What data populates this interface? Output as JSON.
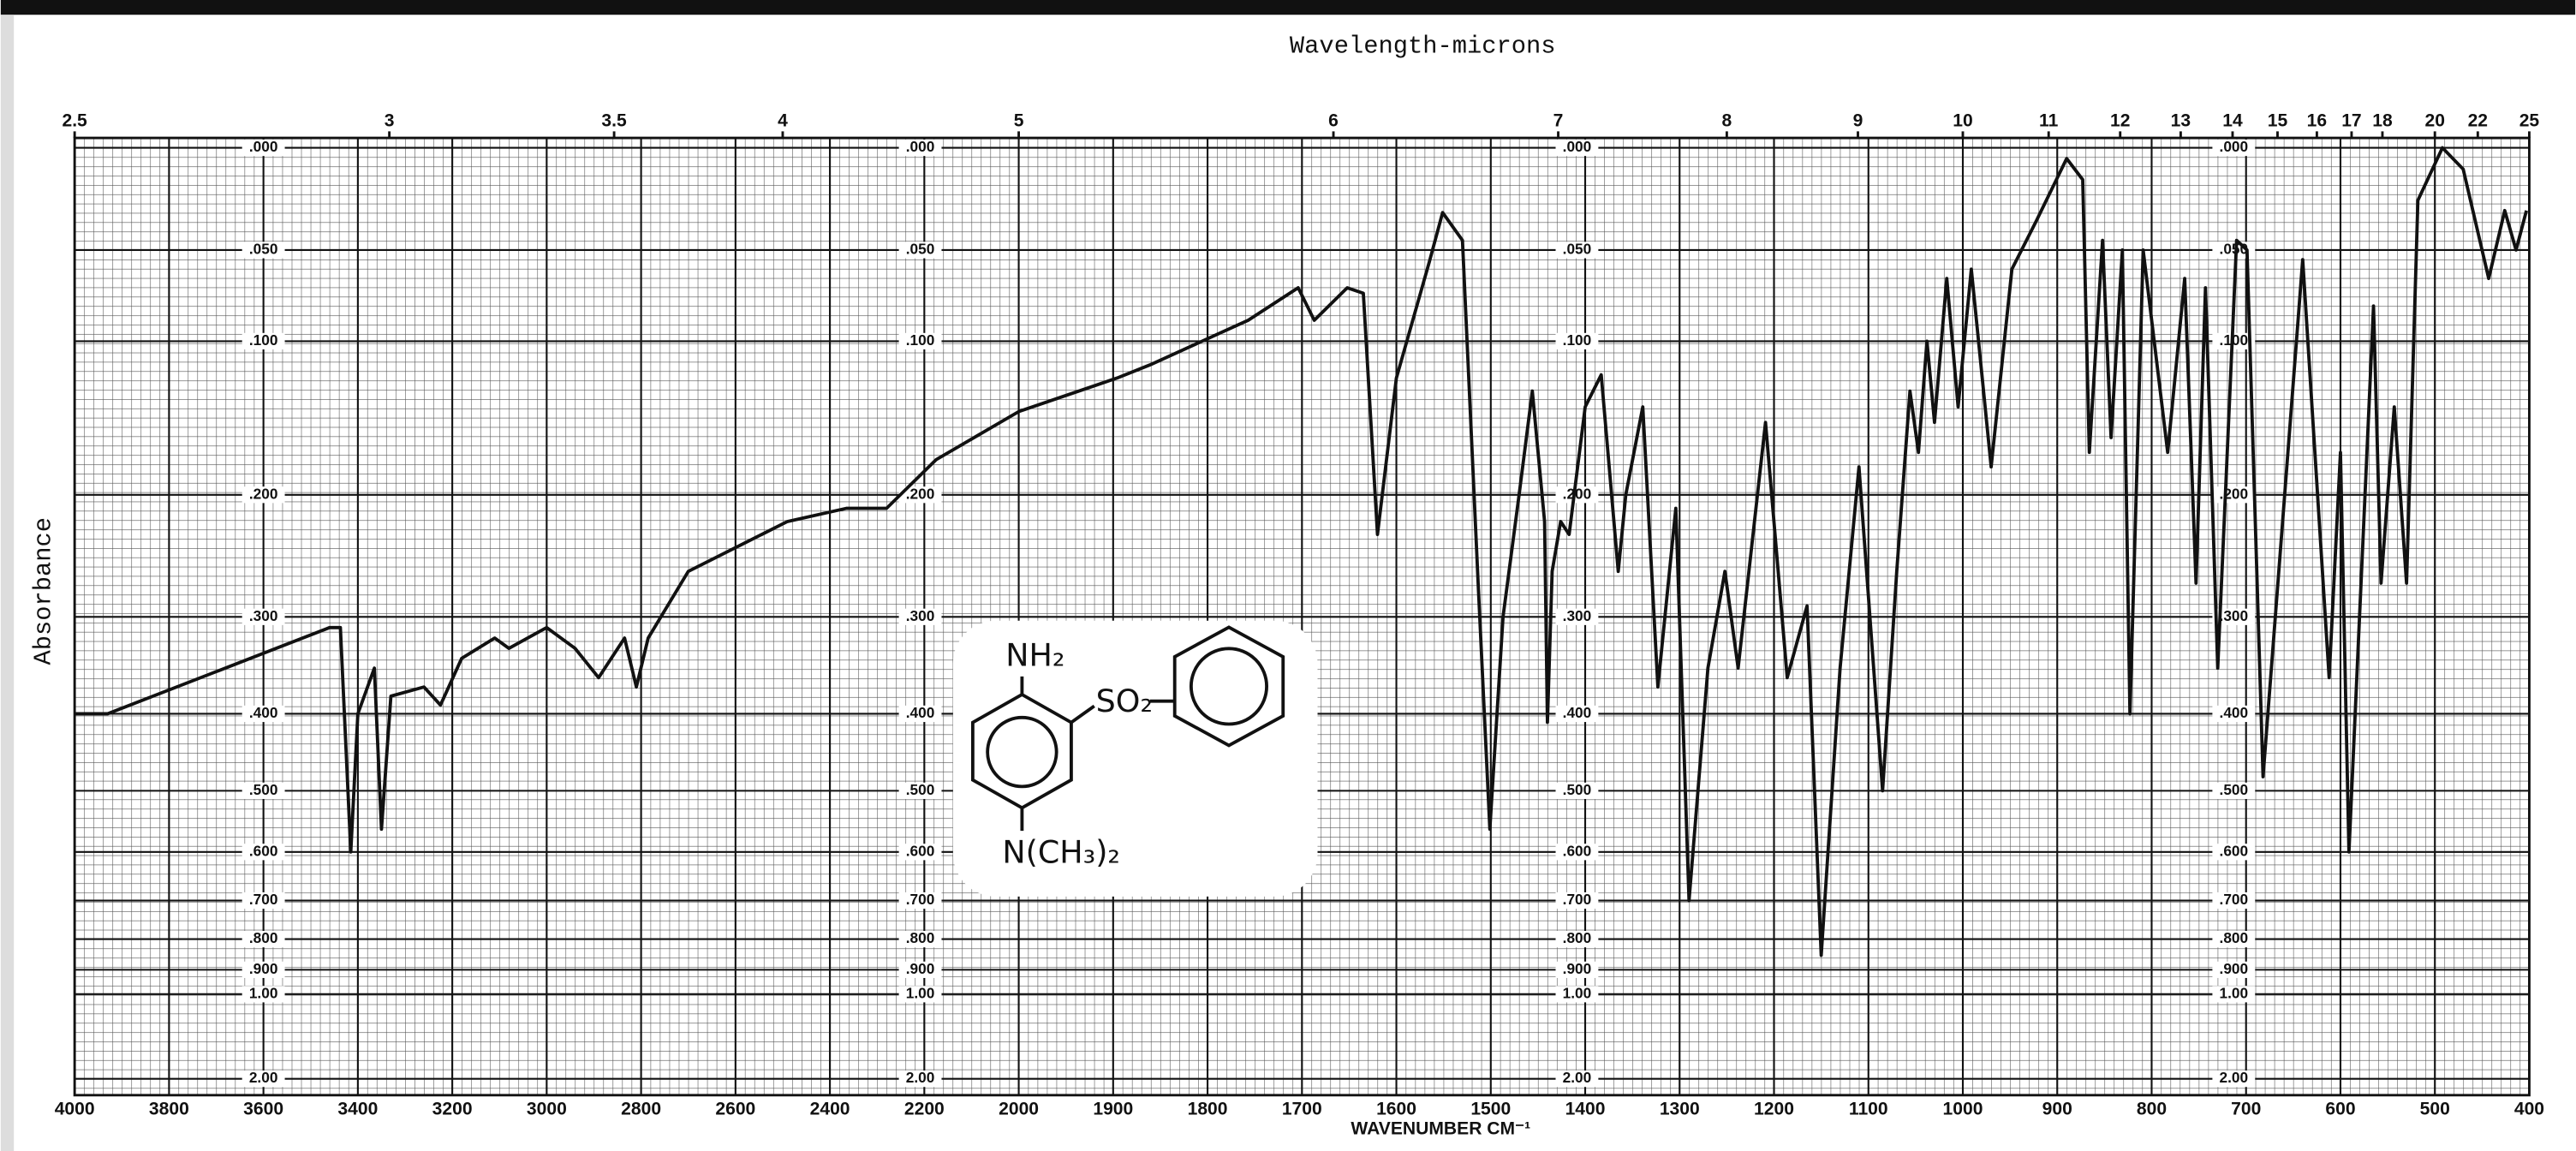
{
  "chart_data": {
    "type": "line",
    "title": "Wavelength-microns",
    "ylabel": "Absorbance",
    "xlabel": "WAVENUMBER CM⁻¹",
    "color": "#111111",
    "grid": true,
    "y_scale": "absorbance",
    "xscale": {
      "break": 2000,
      "expansion": 2
    },
    "xlim": [
      4000,
      400
    ],
    "xticks": [
      4000,
      3800,
      3600,
      3400,
      3200,
      3000,
      2800,
      2600,
      2400,
      2200,
      2000,
      1900,
      1800,
      1700,
      1600,
      1500,
      1400,
      1300,
      1200,
      1100,
      1000,
      900,
      800,
      700,
      600,
      500,
      400
    ],
    "x2ticks": [
      2.5,
      3,
      3.5,
      4,
      5,
      6,
      7,
      8,
      9,
      10,
      11,
      12,
      13,
      14,
      15,
      16,
      17,
      18,
      20,
      22,
      25
    ],
    "ylim": [
      0,
      2
    ],
    "yticks": [
      {
        "value": 0,
        "label": ".000"
      },
      {
        "value": 0.05,
        "label": ".050"
      },
      {
        "value": 0.1,
        "label": ".100"
      },
      {
        "value": 0.2,
        "label": ".200"
      },
      {
        "value": 0.3,
        "label": ".300"
      },
      {
        "value": 0.4,
        "label": ".400"
      },
      {
        "value": 0.5,
        "label": ".500"
      },
      {
        "value": 0.6,
        "label": ".600"
      },
      {
        "value": 0.7,
        "label": ".700"
      },
      {
        "value": 0.8,
        "label": ".800"
      },
      {
        "value": 0.9,
        "label": ".900"
      },
      {
        "value": 1,
        "label": "1.00"
      },
      {
        "value": 2,
        "label": "2.00"
      }
    ],
    "x": [
      4000,
      3930,
      3460,
      3437,
      3415,
      3400,
      3365,
      3350,
      3330,
      3260,
      3225,
      3180,
      3110,
      3080,
      3000,
      2940,
      2890,
      2835,
      2810,
      2785,
      2700,
      2490,
      2365,
      2280,
      2175,
      2000,
      1896,
      1861,
      1757,
      1704,
      1687,
      1652,
      1635,
      1620,
      1600,
      1565,
      1551,
      1530,
      1513,
      1501,
      1487,
      1470,
      1456,
      1443,
      1440,
      1435,
      1426,
      1417,
      1400,
      1383,
      1365,
      1357,
      1339,
      1323,
      1304,
      1290,
      1270,
      1252,
      1238,
      1209,
      1186,
      1165,
      1150,
      1130,
      1110,
      1085,
      1070,
      1056,
      1047,
      1038,
      1030,
      1017,
      1005,
      991,
      970,
      948,
      922,
      890,
      873,
      866,
      852,
      843,
      831,
      823,
      809,
      783,
      765,
      753,
      743,
      730,
      710,
      699,
      682,
      640,
      612,
      600,
      591,
      565,
      557,
      543,
      530,
      518,
      492,
      470,
      443,
      426,
      414,
      403
    ],
    "values": [
      0.4,
      0.4,
      0.31,
      0.31,
      0.6,
      0.4,
      0.35,
      0.56,
      0.38,
      0.37,
      0.39,
      0.34,
      0.32,
      0.33,
      0.31,
      0.33,
      0.36,
      0.32,
      0.37,
      0.32,
      0.26,
      0.22,
      0.21,
      0.21,
      0.175,
      0.143,
      0.122,
      0.114,
      0.088,
      0.07,
      0.088,
      0.07,
      0.073,
      0.23,
      0.122,
      0.056,
      0.031,
      0.045,
      0.277,
      0.56,
      0.3,
      0.2,
      0.13,
      0.22,
      0.41,
      0.26,
      0.22,
      0.23,
      0.14,
      0.12,
      0.26,
      0.2,
      0.14,
      0.37,
      0.21,
      0.7,
      0.35,
      0.26,
      0.35,
      0.15,
      0.36,
      0.29,
      0.85,
      0.35,
      0.18,
      0.5,
      0.26,
      0.13,
      0.17,
      0.1,
      0.15,
      0.065,
      0.14,
      0.06,
      0.18,
      0.06,
      0.035,
      0.005,
      0.015,
      0.17,
      0.045,
      0.16,
      0.05,
      0.4,
      0.05,
      0.17,
      0.065,
      0.27,
      0.07,
      0.35,
      0.045,
      0.05,
      0.48,
      0.055,
      0.36,
      0.17,
      0.6,
      0.08,
      0.27,
      0.14,
      0.27,
      0.025,
      0,
      0.01,
      0.065,
      0.03,
      0.05,
      0.03
    ]
  },
  "structure": {
    "amine": "NH₂",
    "sulfonyl": "SO₂",
    "dimethylamino": "N(CH₃)₂"
  }
}
